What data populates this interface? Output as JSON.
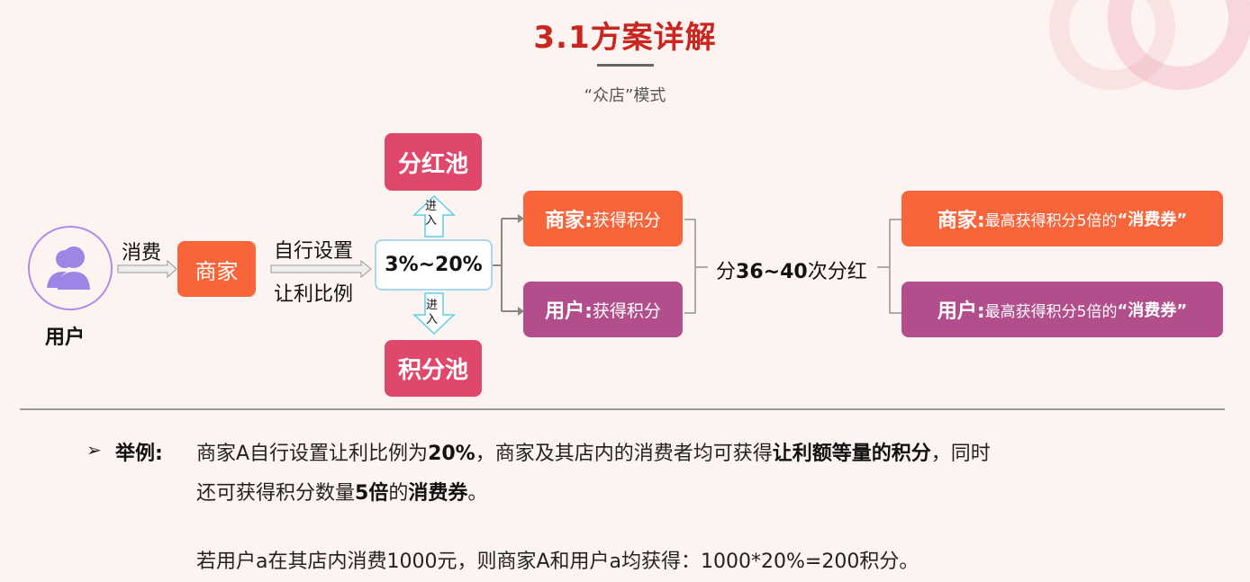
{
  "title": "3.1方案详解",
  "subtitle": "“众店”模式",
  "colors": {
    "orange": "#f8653a",
    "purple": "#b24e8c",
    "pool": "#e0486b",
    "title": "#c8261e",
    "background": "#fdf4f2"
  },
  "diagram": {
    "user_label": "用户",
    "user_icon": "users-icon",
    "consume_label": "消费",
    "merchant_label": "商家",
    "set_label_1": "自行设置",
    "set_label_2": "让利比例",
    "ratio": "3%~20%",
    "enter_label_1": "进",
    "enter_label_2": "入",
    "dividend_pool": "分红池",
    "points_pool": "积分池",
    "merchant_points": {
      "prefix": "商家:",
      "text": "获得积分"
    },
    "user_points": {
      "prefix": "用户:",
      "text": "获得积分"
    },
    "dividend_times": {
      "pre": "分",
      "num": "36~40",
      "post": "次分红"
    },
    "merchant_voucher": {
      "prefix": "商家:",
      "text": "最高获得积分5倍的",
      "bold": "“消费券”"
    },
    "user_voucher": {
      "prefix": "用户:",
      "text": "最高获得积分5倍的",
      "bold": "“消费券”"
    }
  },
  "example": {
    "bullet": "➢",
    "heading": "举例:",
    "l1a": "商家A自行设置让利比例为",
    "l1b": "20%",
    "l1c": "，商家及其店内的消费者均可获得",
    "l1d": "让利额等量的积分",
    "l1e": "，同时",
    "l2a": "还可获得积分数量",
    "l2b": "5倍",
    "l2c": "的",
    "l2d": "消费券",
    "l2e": "。",
    "l3": "若用户a在其店内消费1000元，则商家A和用户a均获得：1000*20%=200积分。"
  }
}
